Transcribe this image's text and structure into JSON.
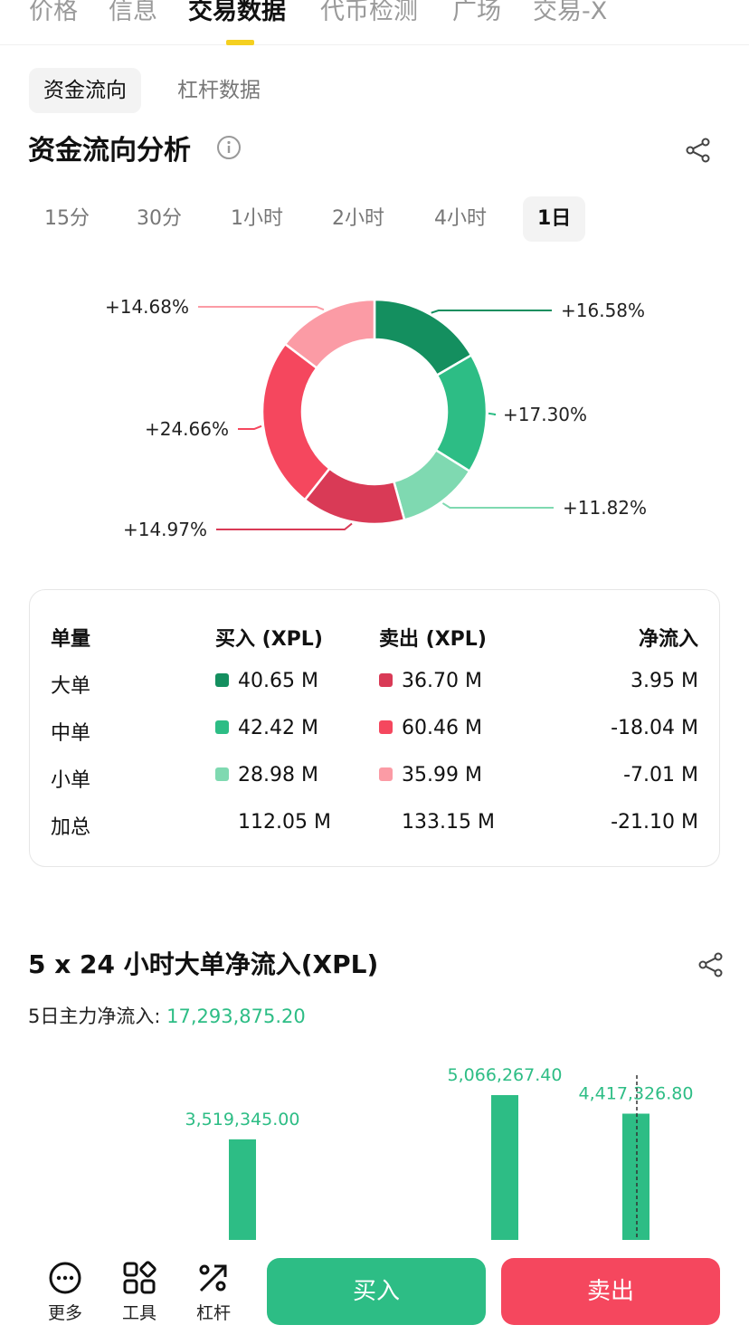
{
  "top_tabs": [
    "价格",
    "信息",
    "交易数据",
    "代币检测",
    "广场",
    "交易-X"
  ],
  "sub_tabs": [
    "资金流向",
    "杠杆数据"
  ],
  "section_title": "资金流向分析",
  "time_filters": [
    "15分",
    "30分",
    "1小时",
    "2小时",
    "4小时",
    "1日"
  ],
  "chart_data": [
    {
      "type": "pie",
      "slices": [
        {
          "label": "+16.58%",
          "value": 16.58,
          "color": "#148f5f"
        },
        {
          "label": "+17.30%",
          "value": 17.3,
          "color": "#2dbd85"
        },
        {
          "label": "+11.82%",
          "value": 11.82,
          "color": "#7fd9b1"
        },
        {
          "label": "+14.97%",
          "value": 14.97,
          "color": "#d93a56"
        },
        {
          "label": "+24.66%",
          "value": 24.66,
          "color": "#f5475e"
        },
        {
          "label": "+14.68%",
          "value": 14.68,
          "color": "#fb9ba5"
        }
      ]
    },
    {
      "type": "bar",
      "title": "5 x 24 小时大单净流入(XPL)",
      "data_labels": [
        "3,519,345.00",
        "5,066,267.40",
        "4,417,326.80"
      ],
      "values": [
        3519345.0,
        5066267.4,
        4417326.8
      ],
      "color": "#2dbd85"
    }
  ],
  "table": {
    "headers": [
      "单量",
      "买入 (XPL)",
      "卖出 (XPL)",
      "净流入"
    ],
    "rows": [
      {
        "label": "大单",
        "buy": "40.65 M",
        "sell": "36.70 M",
        "net": "3.95 M",
        "buy_color": "#148f5f",
        "sell_color": "#d93a56"
      },
      {
        "label": "中单",
        "buy": "42.42 M",
        "sell": "60.46 M",
        "net": "-18.04 M",
        "buy_color": "#2dbd85",
        "sell_color": "#f5475e"
      },
      {
        "label": "小单",
        "buy": "28.98 M",
        "sell": "35.99 M",
        "net": "-7.01 M",
        "buy_color": "#7fd9b1",
        "sell_color": "#fb9ba5"
      }
    ],
    "total": {
      "label": "加总",
      "buy": "112.05 M",
      "sell": "133.15 M",
      "net": "-21.10 M"
    }
  },
  "big_order": {
    "title": "5 x 24 小时大单净流入(XPL)",
    "net_label": "5日主力净流入:",
    "net_value": "17,293,875.20"
  },
  "bottom_tools": [
    {
      "label": "更多",
      "icon": "more-icon"
    },
    {
      "label": "工具",
      "icon": "tools-icon"
    },
    {
      "label": "杠杆",
      "icon": "leverage-icon"
    }
  ],
  "buy_label": "买入",
  "sell_label": "卖出"
}
